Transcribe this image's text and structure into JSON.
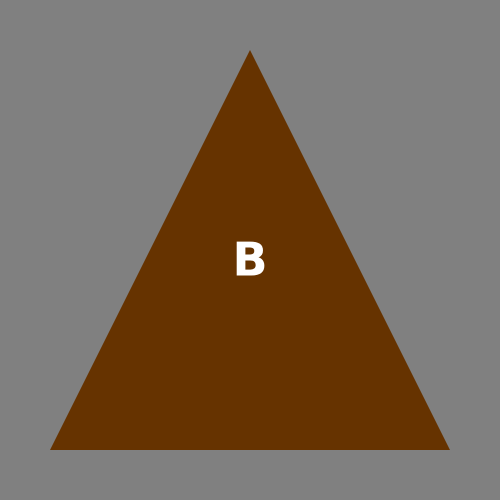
{
  "canvas": {
    "background": "#808080"
  },
  "shape": {
    "kind": "triangle",
    "fill": "#663300",
    "label": "B",
    "label_color": "#ffffff"
  }
}
